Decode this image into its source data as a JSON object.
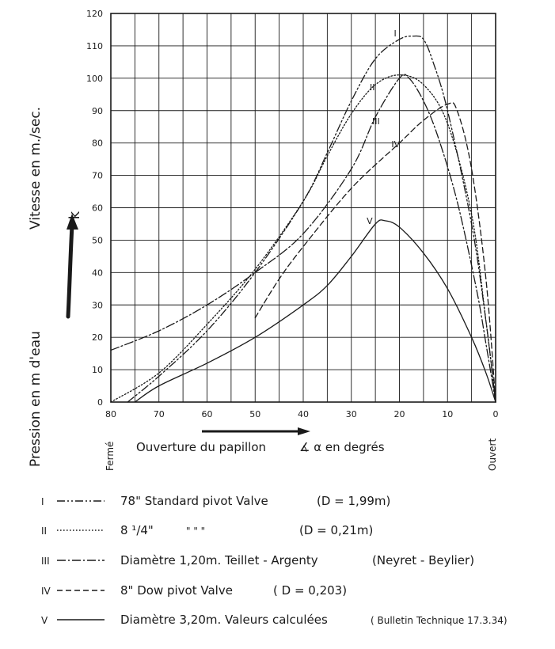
{
  "chart_data": {
    "type": "line",
    "ylabel_pressure": "Pression en m d'eau",
    "ylabel_speed": "Vitesse en m./sec.",
    "y_arrow_label": "k",
    "xlabel": "Ouverture du papillon",
    "xlabel_angle": "∡ α  en degrés",
    "x_left_label": "Fermé",
    "x_right_label": "Ouvert",
    "xlim": [
      80,
      0
    ],
    "ylim": [
      0,
      120
    ],
    "x_ticks": [
      80,
      70,
      60,
      50,
      40,
      30,
      20,
      10,
      0
    ],
    "x_tick_labels": [
      "80",
      "70",
      "60",
      "50",
      "40",
      "30",
      "20",
      "10",
      "0"
    ],
    "y_ticks": [
      0,
      10,
      20,
      30,
      40,
      50,
      60,
      70,
      80,
      90,
      100,
      110,
      120
    ],
    "y_tick_labels": [
      "0",
      "10",
      "20",
      "30",
      "40",
      "50",
      "60",
      "70",
      "80",
      "90",
      "100",
      "110",
      "120"
    ],
    "grid": true,
    "series": [
      {
        "name": "I",
        "dash": "dash-dot-dot",
        "points": [
          [
            76.5,
            0
          ],
          [
            70,
            8
          ],
          [
            60,
            22
          ],
          [
            50,
            40
          ],
          [
            40,
            62
          ],
          [
            35,
            77
          ],
          [
            30,
            93
          ],
          [
            25,
            106
          ],
          [
            20,
            112
          ],
          [
            17,
            113
          ],
          [
            15,
            112
          ],
          [
            13,
            105
          ],
          [
            10,
            90
          ],
          [
            5,
            55
          ],
          [
            2,
            25
          ],
          [
            0,
            0
          ]
        ]
      },
      {
        "name": "II",
        "dash": "dotted",
        "points": [
          [
            80,
            0
          ],
          [
            70,
            9
          ],
          [
            60,
            24
          ],
          [
            50,
            41
          ],
          [
            40,
            62
          ],
          [
            35,
            76
          ],
          [
            30,
            89
          ],
          [
            25,
            98
          ],
          [
            20,
            101
          ],
          [
            15,
            98
          ],
          [
            10,
            86
          ],
          [
            5,
            58
          ],
          [
            2,
            25
          ],
          [
            0,
            0
          ]
        ]
      },
      {
        "name": "III",
        "dash": "dash-dot",
        "points": [
          [
            80,
            16
          ],
          [
            70,
            22
          ],
          [
            60,
            30
          ],
          [
            50,
            40
          ],
          [
            40,
            52
          ],
          [
            30,
            72
          ],
          [
            25,
            88
          ],
          [
            20,
            100
          ],
          [
            18,
            100
          ],
          [
            15,
            93
          ],
          [
            12,
            82
          ],
          [
            8,
            62
          ],
          [
            4,
            35
          ],
          [
            2,
            18
          ],
          [
            0,
            0
          ]
        ]
      },
      {
        "name": "IV",
        "dash": "dashed",
        "points": [
          [
            50,
            26
          ],
          [
            45,
            38
          ],
          [
            40,
            48
          ],
          [
            30,
            66
          ],
          [
            20,
            80
          ],
          [
            15,
            87
          ],
          [
            10,
            92
          ],
          [
            8,
            90
          ],
          [
            5,
            72
          ],
          [
            2,
            38
          ],
          [
            0,
            0
          ]
        ]
      },
      {
        "name": "V",
        "dash": "solid",
        "points": [
          [
            75,
            0
          ],
          [
            70,
            5
          ],
          [
            60,
            12
          ],
          [
            50,
            20
          ],
          [
            40,
            30
          ],
          [
            35,
            36
          ],
          [
            30,
            45
          ],
          [
            25,
            55
          ],
          [
            23,
            56
          ],
          [
            20,
            54
          ],
          [
            15,
            46
          ],
          [
            10,
            35
          ],
          [
            5,
            20
          ],
          [
            2,
            9
          ],
          [
            0,
            0
          ]
        ]
      }
    ],
    "legend": [
      {
        "id": "I",
        "style": "dash-dot-dot",
        "text": "78\" Standard pivot Valve",
        "extra": "(D = 1,99m)"
      },
      {
        "id": "II",
        "style": "dotted",
        "text": "8 ¹/4\"",
        "ditto": "\"     \"     \"",
        "extra": "(D = 0,21m)"
      },
      {
        "id": "III",
        "style": "dash-dot",
        "text": "Diamètre 1,20m. Teillet - Argenty",
        "extra": "(Neyret - Beylier)"
      },
      {
        "id": "IV",
        "style": "dashed",
        "text": "8\" Dow pivot Valve",
        "extra": "( D = 0,203)"
      },
      {
        "id": "V",
        "style": "solid",
        "text": "Diamètre 3,20m. Valeurs calculées",
        "extra": "( Bulletin Technique 17.3.34)"
      }
    ],
    "colors": {
      "ink": "#1a1a1a",
      "background": "#ffffff"
    }
  }
}
